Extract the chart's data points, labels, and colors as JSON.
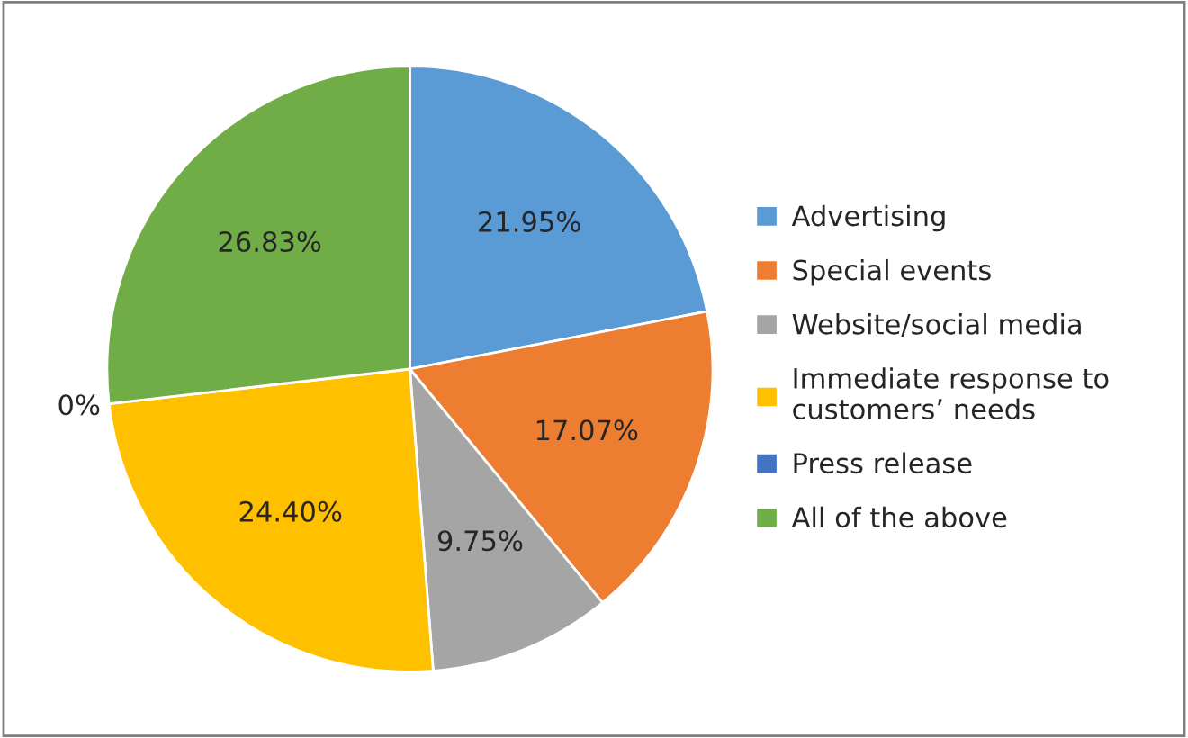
{
  "chart_data": {
    "type": "pie",
    "categories": [
      "Advertising",
      "Special events",
      "Website/social media",
      "Immediate response to\ncustomers’ needs",
      "Press release",
      "All of the above"
    ],
    "values": [
      21.95,
      17.07,
      9.75,
      24.4,
      0,
      26.83
    ],
    "value_labels": [
      "21.95%",
      "17.07%",
      "9.75%",
      "24.40%",
      "0%",
      "26.83%"
    ],
    "colors": [
      "#5b9bd5",
      "#ed7d31",
      "#a5a5a5",
      "#ffc000",
      "#4472c4",
      "#70ad47"
    ],
    "legend": "right"
  }
}
